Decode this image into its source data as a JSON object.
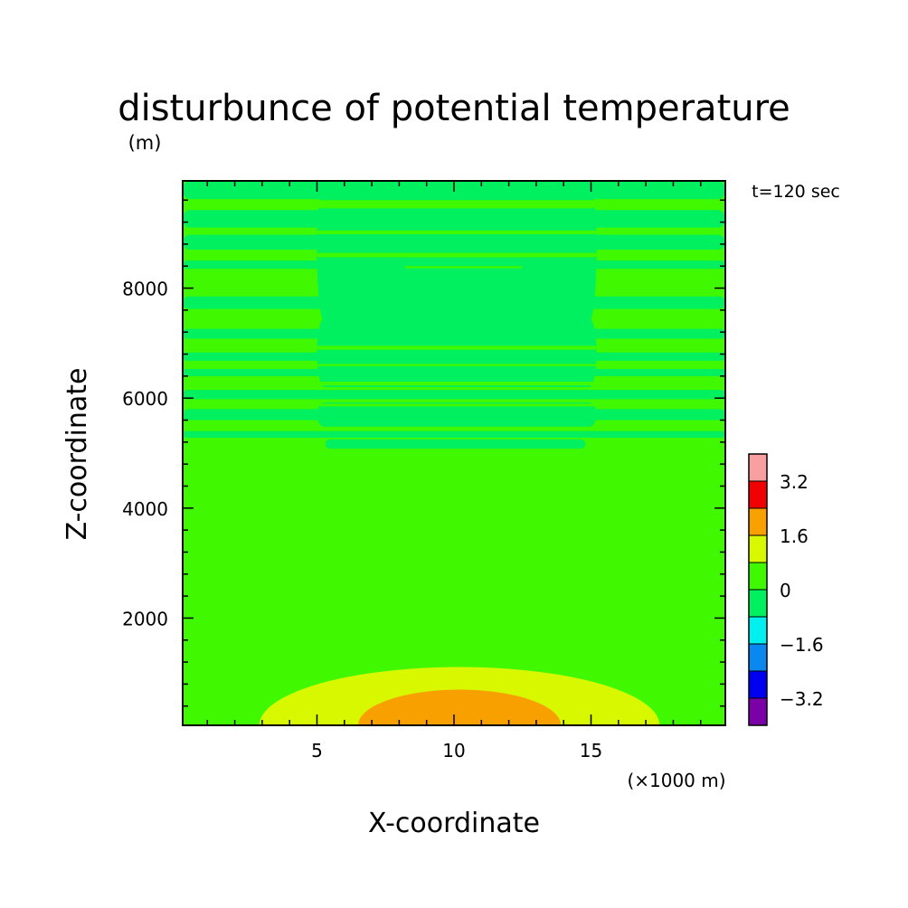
{
  "chart_data": {
    "type": "heatmap",
    "title": "disturbunce of potential temperature",
    "unit_label": "(m)",
    "time_label": "t=120 sec",
    "xlabel": "X-coordinate",
    "ylabel": "Z-coordinate",
    "x_unit_label": "(×1000 m)",
    "xlim": [
      0.1,
      19.9
    ],
    "ylim": [
      50,
      9950
    ],
    "x_ticks": [
      5,
      10,
      15
    ],
    "x_tick_labels": [
      "5",
      "10",
      "15"
    ],
    "y_ticks": [
      2000,
      4000,
      6000,
      8000
    ],
    "y_tick_labels": [
      "2000",
      "4000",
      "6000",
      "8000"
    ],
    "y_minor_step": 400,
    "x_minor_step": 1,
    "background_level": "0 to 0.8",
    "levels": [
      {
        "range": [
          -4.0,
          -3.2
        ],
        "color": "#7b00a8"
      },
      {
        "range": [
          -3.2,
          -2.4
        ],
        "color": "#0000f0"
      },
      {
        "range": [
          -2.4,
          -1.6
        ],
        "color": "#0a88f0"
      },
      {
        "range": [
          -1.6,
          -0.8
        ],
        "color": "#00f0f0"
      },
      {
        "range": [
          -0.8,
          0.0
        ],
        "color": "#00f060"
      },
      {
        "range": [
          0.0,
          0.8
        ],
        "color": "#40f800"
      },
      {
        "range": [
          0.8,
          1.6
        ],
        "color": "#d8f800"
      },
      {
        "range": [
          1.6,
          2.4
        ],
        "color": "#f8a000"
      },
      {
        "range": [
          2.4,
          3.2
        ],
        "color": "#f00000"
      },
      {
        "range": [
          3.2,
          4.0
        ],
        "color": "#f8a0a0"
      }
    ],
    "colorbar_labels": [
      {
        "value": -3.2,
        "text": "−3.2"
      },
      {
        "value": -1.6,
        "text": "−1.6"
      },
      {
        "value": 0,
        "text": "0"
      },
      {
        "value": 1.6,
        "text": "1.6"
      },
      {
        "value": 3.2,
        "text": "3.2"
      }
    ],
    "anomalies": [
      {
        "level": "0.8 to 1.6",
        "shape": "half-ellipse",
        "center_x": 10.2,
        "half_width": 7.3,
        "top_z": 1110
      },
      {
        "level": "1.6 to 2.4",
        "shape": "half-ellipse",
        "center_x": 10.2,
        "half_width": 3.7,
        "top_z": 700
      }
    ],
    "bands": [
      {
        "level": "-0.8 to 0",
        "x": [
          0.1,
          19.9
        ],
        "z": [
          9620,
          9950
        ]
      },
      {
        "level": "-0.8 to 0",
        "x": [
          0.1,
          19.9
        ],
        "z": [
          9100,
          9420
        ]
      },
      {
        "level": "-0.8 to 0",
        "x": [
          0.1,
          19.9
        ],
        "z": [
          8700,
          8970
        ]
      },
      {
        "level": "-0.8 to 0",
        "x": [
          0.1,
          19.9
        ],
        "z": [
          8350,
          8500
        ]
      },
      {
        "level": "-0.8 to 0",
        "x": [
          0.1,
          19.9
        ],
        "z": [
          7620,
          7850
        ]
      },
      {
        "level": "-0.8 to 0",
        "x": [
          0.1,
          19.9
        ],
        "z": [
          7080,
          7260
        ]
      },
      {
        "level": "-0.8 to 0",
        "x": [
          0.1,
          19.9
        ],
        "z": [
          6680,
          6830
        ]
      },
      {
        "level": "-0.8 to 0",
        "x": [
          0.1,
          19.9
        ],
        "z": [
          6400,
          6530
        ]
      },
      {
        "level": "-0.8 to 0",
        "x": [
          0.1,
          19.9
        ],
        "z": [
          5980,
          6150
        ]
      },
      {
        "level": "-0.8 to 0",
        "x": [
          0.1,
          19.9
        ],
        "z": [
          5600,
          5800
        ]
      },
      {
        "level": "-0.8 to 0",
        "x": [
          0.1,
          19.9
        ],
        "z": [
          5280,
          5400
        ]
      },
      {
        "level": "-0.8 to 0",
        "x": [
          5.0,
          15.2
        ],
        "z": [
          7400,
          9950
        ]
      },
      {
        "level": "-0.8 to 0",
        "x": [
          5.0,
          15.2
        ],
        "z": [
          6200,
          7450
        ]
      },
      {
        "level": "-0.8 to 0",
        "x": [
          5.0,
          15.2
        ],
        "z": [
          5480,
          5920
        ]
      },
      {
        "level": "-0.8 to 0",
        "x": [
          5.3,
          14.8
        ],
        "z": [
          5080,
          5250
        ]
      },
      {
        "level": "0 to 0.8",
        "x": [
          5.0,
          15.2
        ],
        "z": [
          9450,
          9600
        ]
      },
      {
        "level": "0 to 0.8",
        "x": [
          5.0,
          15.2
        ],
        "z": [
          8980,
          9050
        ]
      },
      {
        "level": "0 to 0.8",
        "x": [
          5.0,
          15.2
        ],
        "z": [
          8560,
          8640
        ]
      },
      {
        "level": "0 to 0.8",
        "x": [
          8.2,
          12.5
        ],
        "z": [
          8360,
          8400
        ]
      },
      {
        "level": "0 to 0.8",
        "x": [
          5.0,
          15.2
        ],
        "z": [
          6880,
          6950
        ]
      },
      {
        "level": "0 to 0.8",
        "x": [
          5.0,
          15.2
        ],
        "z": [
          6580,
          6620
        ]
      },
      {
        "level": "0 to 0.8",
        "x": [
          5.0,
          15.2
        ],
        "z": [
          6230,
          6300
        ]
      },
      {
        "level": "0 to 0.8",
        "x": [
          5.0,
          15.2
        ],
        "z": [
          5850,
          5900
        ]
      },
      {
        "level": "0 to 0.8",
        "x": [
          5.0,
          15.2
        ],
        "z": [
          5420,
          5470
        ]
      }
    ]
  }
}
